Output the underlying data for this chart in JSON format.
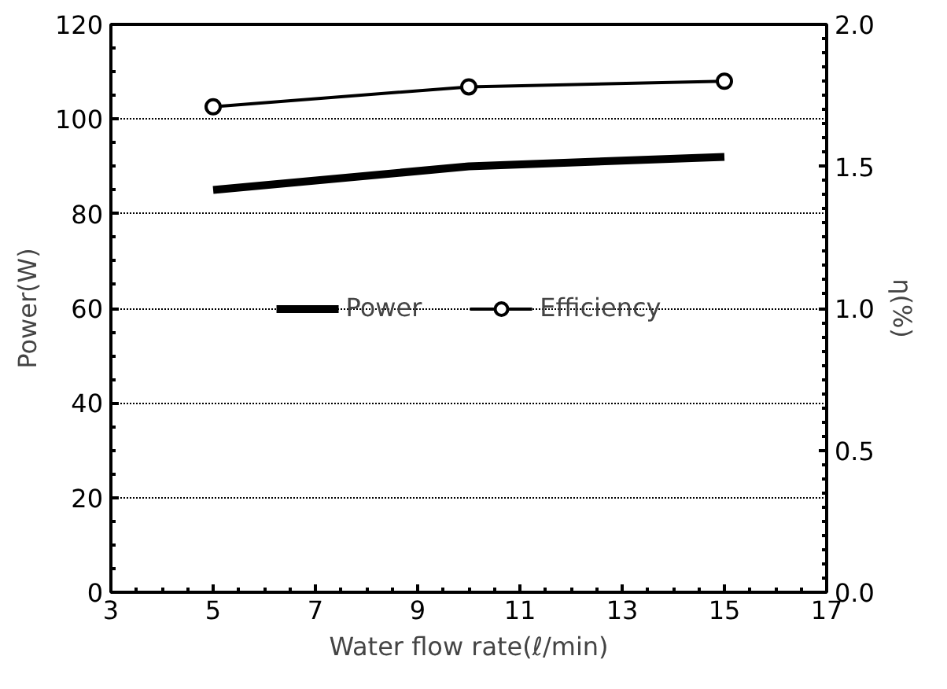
{
  "chart_data": {
    "type": "line",
    "xlabel": "Water flow rate(ℓ/min)",
    "ylabel": "Power(W)",
    "y2label": "η(%)",
    "x": [
      5,
      10,
      15
    ],
    "series": [
      {
        "name": "Power",
        "color": "#000000",
        "values": [
          85,
          90,
          92
        ],
        "marker": "none"
      },
      {
        "name": "Efficiency",
        "color": "#000000",
        "values": [
          1.71,
          1.78,
          1.8
        ],
        "axis": "y2",
        "marker": "circle"
      }
    ],
    "xlim": [
      3,
      17
    ],
    "xticks": [
      3,
      5,
      7,
      9,
      11,
      13,
      15,
      17
    ],
    "ylim": [
      0,
      120
    ],
    "yticks": [
      0,
      20,
      40,
      60,
      80,
      100,
      120
    ],
    "y2lim": [
      0,
      2.0
    ],
    "y2ticks": [
      {
        "value": 0,
        "label": "0.0"
      },
      {
        "value": 0.5,
        "label": "0.5"
      },
      {
        "value": 1.0,
        "label": "1.0"
      },
      {
        "value": 1.5,
        "label": "1.5"
      },
      {
        "value": 2.0,
        "label": "2.0"
      }
    ],
    "grid": "y",
    "legend": "center",
    "line_style": "solid"
  }
}
